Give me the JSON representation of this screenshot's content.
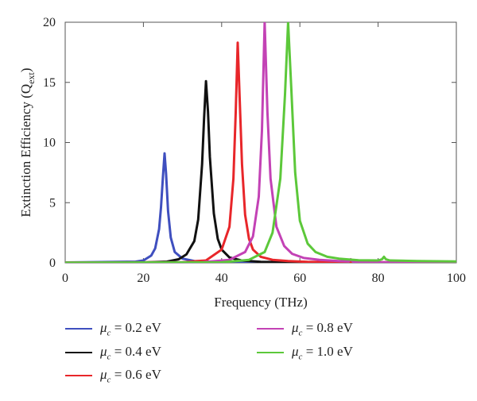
{
  "chart_data": {
    "type": "line",
    "xlabel": "Frequency (THz)",
    "ylabel": "Extinction Efficiency (Q",
    "ylabel_sub": "ext",
    "ylabel_close": ")",
    "xlim": [
      0,
      100
    ],
    "ylim": [
      0,
      20
    ],
    "xticks": [
      0,
      20,
      40,
      60,
      80,
      100
    ],
    "yticks": [
      0,
      5,
      10,
      15,
      20
    ],
    "grid": false,
    "legend_position": "bottom",
    "series": [
      {
        "name": "μc = 0.2 eV",
        "legend_symbol": "μ",
        "legend_sub": "c",
        "legend_value": " = 0.2 eV",
        "color": "#3f4fbf",
        "x": [
          0,
          18,
          20,
          22,
          23,
          24,
          24.5,
          25,
          25.4,
          25.8,
          26.3,
          27,
          28,
          30,
          33,
          40,
          50,
          70,
          100
        ],
        "y": [
          0.03,
          0.1,
          0.2,
          0.6,
          1.2,
          2.8,
          4.6,
          7.2,
          9.1,
          7.4,
          4.3,
          2.1,
          0.9,
          0.35,
          0.15,
          0.05,
          0.02,
          0.01,
          0.01
        ]
      },
      {
        "name": "μc = 0.4 eV",
        "legend_symbol": "μ",
        "legend_sub": "c",
        "legend_value": " = 0.4 eV",
        "color": "#111111",
        "x": [
          0,
          20,
          26,
          29,
          31,
          33,
          34,
          35,
          35.5,
          36,
          36.5,
          37,
          38,
          39,
          40,
          42,
          45,
          50,
          60,
          100
        ],
        "y": [
          0.02,
          0.03,
          0.1,
          0.3,
          0.7,
          1.8,
          3.6,
          8.2,
          12.0,
          15.1,
          12.6,
          8.8,
          4.1,
          2.0,
          1.1,
          0.45,
          0.2,
          0.08,
          0.04,
          0.02
        ]
      },
      {
        "name": "μc = 0.6 eV",
        "legend_symbol": "μ",
        "legend_sub": "c",
        "legend_value": " = 0.6 eV",
        "color": "#e8262a",
        "x": [
          0,
          30,
          36,
          40,
          42,
          43,
          43.6,
          44.1,
          44.6,
          45.2,
          46,
          47,
          48,
          50,
          53,
          57,
          62,
          70,
          100
        ],
        "y": [
          0.02,
          0.05,
          0.2,
          1.1,
          3.0,
          7.0,
          12.5,
          18.3,
          13.8,
          8.2,
          4.0,
          2.0,
          1.1,
          0.5,
          0.25,
          0.15,
          0.08,
          0.05,
          0.03
        ]
      },
      {
        "name": "μc = 0.8 eV",
        "legend_symbol": "μ",
        "legend_sub": "c",
        "legend_value": " = 0.8 eV",
        "color": "#c342b5",
        "x": [
          0,
          35,
          42,
          46,
          48,
          49.5,
          50.3,
          51,
          51.7,
          52.5,
          54,
          56,
          58,
          61,
          65,
          70,
          72.5,
          73,
          73.5,
          76,
          85,
          100
        ],
        "y": [
          0.02,
          0.05,
          0.25,
          0.9,
          2.2,
          5.5,
          11.0,
          20.0,
          12.5,
          7.0,
          3.0,
          1.4,
          0.75,
          0.4,
          0.25,
          0.15,
          0.12,
          0.3,
          0.1,
          0.06,
          0.04,
          0.03
        ]
      },
      {
        "name": "μc = 1.0 eV",
        "legend_symbol": "μ",
        "legend_sub": "c",
        "legend_value": " = 1.0 eV",
        "color": "#5cc83a",
        "x": [
          0,
          40,
          47,
          51,
          53,
          55,
          56.2,
          57,
          57.8,
          58.8,
          60,
          62,
          64,
          67,
          70,
          75,
          80,
          81,
          81.5,
          82,
          83,
          90,
          100
        ],
        "y": [
          0.02,
          0.04,
          0.25,
          0.9,
          2.5,
          7.0,
          14.0,
          20.0,
          14.5,
          7.5,
          3.5,
          1.6,
          0.9,
          0.5,
          0.35,
          0.22,
          0.2,
          0.3,
          0.5,
          0.3,
          0.2,
          0.15,
          0.12
        ]
      }
    ]
  }
}
